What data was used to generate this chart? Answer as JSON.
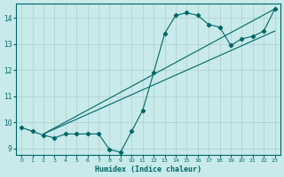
{
  "xlabel": "Humidex (Indice chaleur)",
  "background_color": "#c8eaea",
  "grid_color": "#b0cccc",
  "line_color": "#006666",
  "xlim": [
    -0.5,
    23.5
  ],
  "ylim": [
    8.75,
    14.55
  ],
  "xticks": [
    0,
    1,
    2,
    3,
    4,
    5,
    6,
    7,
    8,
    9,
    10,
    11,
    12,
    13,
    14,
    15,
    16,
    17,
    18,
    19,
    20,
    21,
    22,
    23
  ],
  "yticks": [
    9,
    10,
    11,
    12,
    13,
    14
  ],
  "zigzag_x": [
    0,
    1,
    2,
    3,
    4,
    5,
    6,
    7,
    8,
    9,
    10,
    11,
    12,
    13,
    14,
    15,
    16,
    17,
    18,
    19,
    20,
    21,
    22,
    23
  ],
  "zigzag_y": [
    9.8,
    9.65,
    9.5,
    9.4,
    9.55,
    9.55,
    9.55,
    9.55,
    8.95,
    8.85,
    9.65,
    10.45,
    11.9,
    13.4,
    14.1,
    14.2,
    14.1,
    13.75,
    13.65,
    12.95,
    13.2,
    13.3,
    13.5,
    14.35
  ],
  "line1_x": [
    2,
    23
  ],
  "line1_y": [
    9.55,
    14.35
  ],
  "line2_x": [
    2,
    23
  ],
  "line2_y": [
    9.55,
    13.5
  ]
}
